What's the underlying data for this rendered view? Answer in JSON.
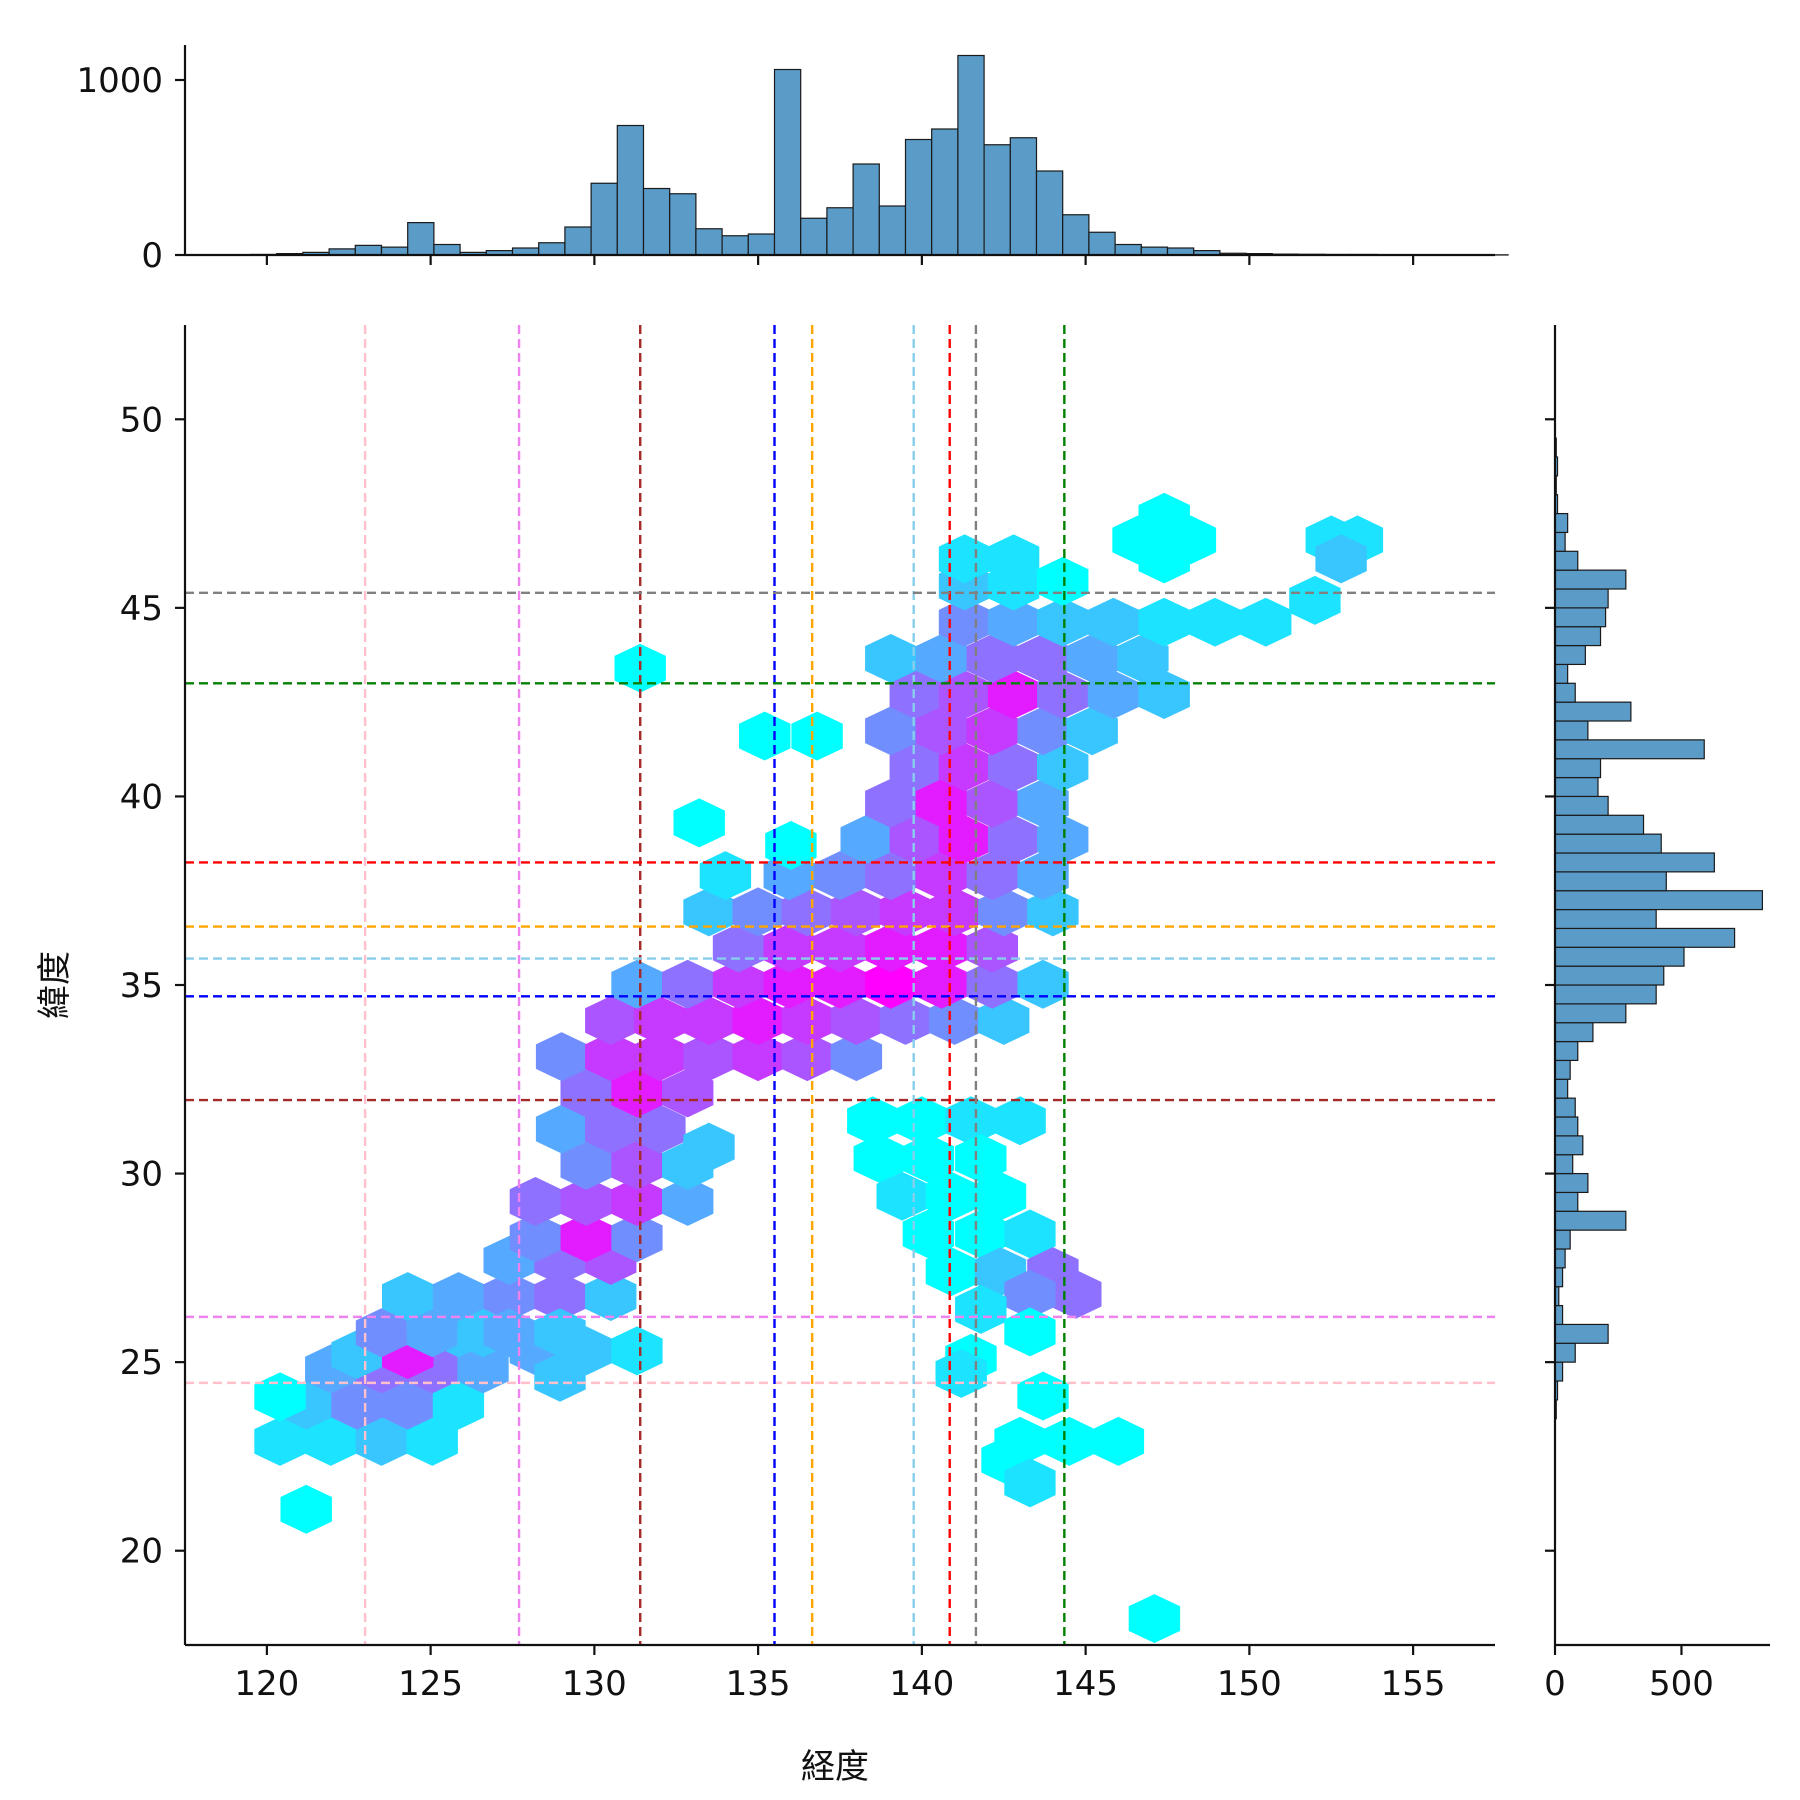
{
  "chart_data": {
    "type": "hexbin-joint",
    "xlabel": "経度",
    "ylabel": "緯度",
    "xlim": [
      117.5,
      157.5
    ],
    "ylim": [
      17.5,
      52.5
    ],
    "main_x_ticks": [
      120,
      125,
      130,
      135,
      140,
      145,
      150,
      155
    ],
    "main_y_ticks": [
      20,
      25,
      30,
      35,
      40,
      45,
      50
    ],
    "top_hist": {
      "y_ticks": [
        0,
        1000
      ],
      "ylim": [
        0,
        1200
      ],
      "bin_width": 0.8,
      "start": 119.5,
      "counts": [
        3,
        8,
        15,
        35,
        55,
        45,
        185,
        60,
        15,
        25,
        40,
        70,
        160,
        410,
        740,
        380,
        350,
        150,
        110,
        120,
        1060,
        210,
        270,
        520,
        280,
        660,
        720,
        1140,
        630,
        670,
        480,
        230,
        130,
        60,
        45,
        40,
        25,
        10,
        8,
        5,
        4,
        3,
        3,
        2,
        2,
        2,
        1,
        1
      ]
    },
    "right_hist": {
      "x_ticks": [
        0,
        500
      ],
      "xlim": [
        0,
        850
      ],
      "bin_width": 0.5,
      "start": 18.0,
      "counts": [
        0,
        0,
        0,
        0,
        0,
        0,
        0,
        0,
        0,
        0,
        0,
        5,
        10,
        30,
        80,
        210,
        30,
        15,
        30,
        40,
        60,
        280,
        90,
        130,
        70,
        110,
        90,
        80,
        50,
        60,
        90,
        150,
        280,
        400,
        430,
        510,
        710,
        400,
        820,
        440,
        630,
        420,
        350,
        210,
        170,
        180,
        590,
        130,
        300,
        80,
        50,
        120,
        180,
        200,
        210,
        280,
        90,
        40,
        50,
        10,
        5,
        10,
        5
      ]
    },
    "ref_lines": [
      {
        "lon": 123.0,
        "lat": 24.45,
        "color": "#ffc0cb"
      },
      {
        "lon": 127.7,
        "lat": 26.2,
        "color": "#ee82ee"
      },
      {
        "lon": 131.4,
        "lat": 31.95,
        "color": "#a52a2a"
      },
      {
        "lon": 135.5,
        "lat": 34.7,
        "color": "#0000ff"
      },
      {
        "lon": 136.65,
        "lat": 36.55,
        "color": "#ffa500"
      },
      {
        "lon": 139.75,
        "lat": 35.7,
        "color": "#87ceeb"
      },
      {
        "lon": 140.85,
        "lat": 38.25,
        "color": "#ff0000"
      },
      {
        "lon": 141.65,
        "lat": 45.4,
        "color": "#808080"
      },
      {
        "lon": 144.35,
        "lat": 43.0,
        "color": "#008000"
      }
    ],
    "hexbin": {
      "gridsize_dx": 1.55,
      "gridsize_dy": 0.96,
      "colormap": "cool",
      "max_count": 10,
      "cells": [
        [
          121.2,
          21.1,
          1
        ],
        [
          120.4,
          22.9,
          2
        ],
        [
          121.95,
          22.9,
          2
        ],
        [
          123.5,
          22.9,
          3
        ],
        [
          125.05,
          22.9,
          2
        ],
        [
          121.2,
          23.86,
          3
        ],
        [
          122.75,
          23.86,
          5
        ],
        [
          124.3,
          23.86,
          5
        ],
        [
          125.85,
          23.86,
          2
        ],
        [
          120.4,
          24.08,
          1
        ],
        [
          121.95,
          24.82,
          4
        ],
        [
          123.5,
          24.82,
          6
        ],
        [
          125.05,
          24.82,
          6
        ],
        [
          126.6,
          24.82,
          4
        ],
        [
          122.75,
          25.2,
          3
        ],
        [
          124.3,
          25.2,
          9
        ],
        [
          125.85,
          25.78,
          3
        ],
        [
          123.5,
          25.78,
          5
        ],
        [
          125.05,
          25.78,
          4
        ],
        [
          126.6,
          25.78,
          3
        ],
        [
          124.3,
          26.74,
          3
        ],
        [
          125.85,
          26.74,
          4
        ],
        [
          127.4,
          26.74,
          5
        ],
        [
          128.95,
          26.74,
          6
        ],
        [
          130.5,
          26.74,
          3
        ],
        [
          128.2,
          25.3,
          4
        ],
        [
          129.75,
          25.3,
          3
        ],
        [
          131.3,
          25.3,
          2
        ],
        [
          128.95,
          24.6,
          3
        ],
        [
          127.4,
          25.78,
          4
        ],
        [
          128.95,
          25.78,
          3
        ],
        [
          127.4,
          27.7,
          4
        ],
        [
          128.95,
          27.7,
          6
        ],
        [
          130.5,
          27.7,
          7
        ],
        [
          128.2,
          28.3,
          5
        ],
        [
          129.75,
          28.3,
          9
        ],
        [
          131.3,
          28.3,
          5
        ],
        [
          128.2,
          29.26,
          6
        ],
        [
          129.75,
          29.26,
          7
        ],
        [
          131.3,
          29.26,
          8
        ],
        [
          132.85,
          29.26,
          4
        ],
        [
          129.75,
          30.22,
          5
        ],
        [
          131.3,
          30.22,
          7
        ],
        [
          132.85,
          30.22,
          3
        ],
        [
          129,
          31.18,
          4
        ],
        [
          130.5,
          31.18,
          6
        ],
        [
          132.0,
          31.18,
          6
        ],
        [
          133.5,
          30.7,
          3
        ],
        [
          129.75,
          32.14,
          6
        ],
        [
          131.3,
          32.14,
          9
        ],
        [
          132.85,
          32.14,
          7
        ],
        [
          129,
          33.1,
          5
        ],
        [
          130.5,
          33.1,
          8
        ],
        [
          132.0,
          33.1,
          8
        ],
        [
          133.5,
          33.1,
          7
        ],
        [
          135.0,
          33.1,
          8
        ],
        [
          136.5,
          33.1,
          7
        ],
        [
          138.0,
          33.1,
          5
        ],
        [
          130.5,
          34.06,
          7
        ],
        [
          132.0,
          34.06,
          8
        ],
        [
          133.5,
          34.06,
          8
        ],
        [
          135.0,
          34.06,
          9
        ],
        [
          136.5,
          34.06,
          8
        ],
        [
          138.0,
          34.06,
          7
        ],
        [
          139.5,
          34.06,
          6
        ],
        [
          141.0,
          34.06,
          5
        ],
        [
          142.5,
          34.06,
          3
        ],
        [
          131.3,
          35.02,
          4
        ],
        [
          132.85,
          35.02,
          6
        ],
        [
          134.4,
          35.02,
          8
        ],
        [
          135.95,
          35.02,
          9
        ],
        [
          137.5,
          35.02,
          9
        ],
        [
          139.05,
          35.02,
          10
        ],
        [
          140.6,
          35.02,
          9
        ],
        [
          142.15,
          35.02,
          6
        ],
        [
          143.7,
          35.02,
          3
        ],
        [
          134.4,
          35.98,
          6
        ],
        [
          135.95,
          35.98,
          8
        ],
        [
          137.5,
          35.98,
          8
        ],
        [
          139.05,
          35.98,
          9
        ],
        [
          140.6,
          35.98,
          9
        ],
        [
          142.15,
          35.98,
          7
        ],
        [
          133.5,
          36.94,
          3
        ],
        [
          135.0,
          36.94,
          5
        ],
        [
          136.5,
          36.94,
          6
        ],
        [
          138.0,
          36.94,
          7
        ],
        [
          139.5,
          36.94,
          8
        ],
        [
          141.0,
          36.94,
          8
        ],
        [
          142.5,
          36.94,
          5
        ],
        [
          144.0,
          36.94,
          3
        ],
        [
          134.0,
          37.9,
          2
        ],
        [
          135.95,
          37.9,
          4
        ],
        [
          137.5,
          37.9,
          5
        ],
        [
          139.05,
          37.9,
          6
        ],
        [
          140.6,
          37.9,
          8
        ],
        [
          142.15,
          37.9,
          6
        ],
        [
          143.7,
          37.9,
          4
        ],
        [
          138.3,
          38.86,
          4
        ],
        [
          139.8,
          38.86,
          7
        ],
        [
          141.3,
          38.86,
          9
        ],
        [
          142.8,
          38.86,
          6
        ],
        [
          144.3,
          38.86,
          4
        ],
        [
          139.05,
          39.82,
          6
        ],
        [
          140.6,
          39.82,
          9
        ],
        [
          142.15,
          39.82,
          7
        ],
        [
          143.7,
          39.82,
          4
        ],
        [
          139.8,
          40.78,
          6
        ],
        [
          141.3,
          40.78,
          8
        ],
        [
          142.8,
          40.78,
          6
        ],
        [
          144.3,
          40.78,
          3
        ],
        [
          139.05,
          41.74,
          5
        ],
        [
          140.6,
          41.74,
          7
        ],
        [
          142.15,
          41.74,
          8
        ],
        [
          143.7,
          41.74,
          5
        ],
        [
          145.2,
          41.74,
          3
        ],
        [
          139.8,
          42.7,
          6
        ],
        [
          141.3,
          42.7,
          7
        ],
        [
          142.8,
          42.7,
          9
        ],
        [
          144.3,
          42.7,
          6
        ],
        [
          145.85,
          42.7,
          4
        ],
        [
          147.4,
          42.7,
          3
        ],
        [
          139.05,
          43.66,
          3
        ],
        [
          140.6,
          43.66,
          4
        ],
        [
          142.15,
          43.66,
          6
        ],
        [
          143.7,
          43.66,
          6
        ],
        [
          145.2,
          43.66,
          4
        ],
        [
          146.75,
          43.66,
          3
        ],
        [
          141.3,
          44.62,
          5
        ],
        [
          142.8,
          44.62,
          4
        ],
        [
          144.3,
          44.62,
          3
        ],
        [
          145.85,
          44.62,
          3
        ],
        [
          147.4,
          44.62,
          2
        ],
        [
          148.95,
          44.62,
          2
        ],
        [
          150.5,
          44.62,
          2
        ],
        [
          152.0,
          45.2,
          2
        ],
        [
          141.3,
          45.58,
          3
        ],
        [
          142.8,
          45.58,
          2
        ],
        [
          141.3,
          46.3,
          2
        ],
        [
          142.8,
          46.3,
          2
        ],
        [
          144.3,
          45.7,
          1
        ],
        [
          147.4,
          46.3,
          1
        ],
        [
          148.2,
          46.8,
          1
        ],
        [
          146.6,
          46.8,
          1
        ],
        [
          147.4,
          47.4,
          1
        ],
        [
          152.5,
          46.8,
          2
        ],
        [
          153.3,
          46.8,
          2
        ],
        [
          152.8,
          46.3,
          3
        ],
        [
          131.4,
          43.4,
          1
        ],
        [
          135.2,
          41.6,
          1
        ],
        [
          136.8,
          41.6,
          1
        ],
        [
          133.2,
          39.3,
          1
        ],
        [
          136.0,
          38.7,
          1
        ],
        [
          138.5,
          31.4,
          1
        ],
        [
          140.0,
          31.4,
          1
        ],
        [
          141.5,
          31.4,
          2
        ],
        [
          143.0,
          31.4,
          2
        ],
        [
          138.7,
          30.4,
          1
        ],
        [
          140.2,
          30.4,
          1
        ],
        [
          141.8,
          30.4,
          1
        ],
        [
          139.4,
          29.4,
          2
        ],
        [
          140.9,
          29.4,
          1
        ],
        [
          142.4,
          29.4,
          1
        ],
        [
          140.2,
          28.4,
          1
        ],
        [
          141.8,
          28.4,
          1
        ],
        [
          143.3,
          28.4,
          2
        ],
        [
          140.9,
          27.4,
          1
        ],
        [
          142.4,
          27.4,
          3
        ],
        [
          144.0,
          27.4,
          6
        ],
        [
          144.7,
          26.8,
          6
        ],
        [
          143.3,
          26.8,
          5
        ],
        [
          141.8,
          26.4,
          2
        ],
        [
          143.3,
          25.8,
          1
        ],
        [
          141.5,
          25.1,
          1
        ],
        [
          141.2,
          24.7,
          2
        ],
        [
          143.7,
          24.1,
          1
        ],
        [
          143.0,
          22.9,
          1
        ],
        [
          144.5,
          22.9,
          1
        ],
        [
          146.0,
          22.9,
          1
        ],
        [
          142.6,
          22.4,
          1
        ],
        [
          143.3,
          21.8,
          2
        ],
        [
          147.1,
          18.2,
          1
        ]
      ]
    }
  }
}
